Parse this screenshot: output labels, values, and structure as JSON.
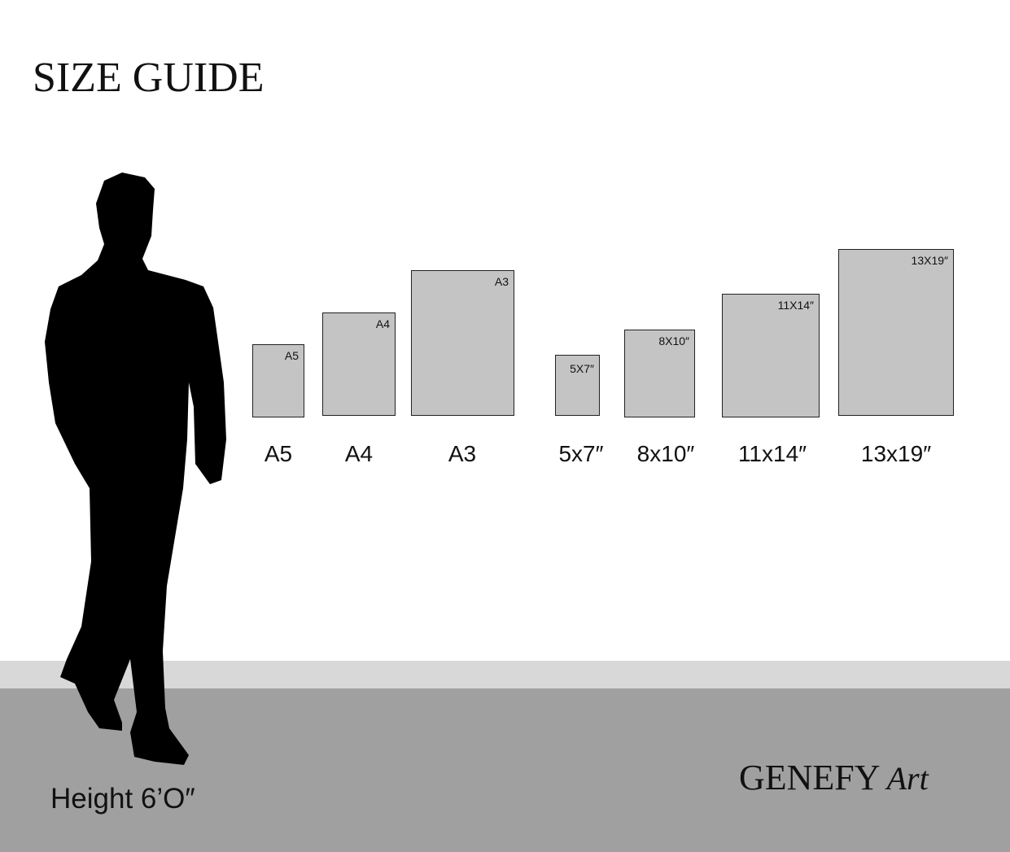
{
  "title": "SIZE GUIDE",
  "papers": [
    {
      "tag": "A5",
      "label": "A5"
    },
    {
      "tag": "A4",
      "label": "A4"
    },
    {
      "tag": "A3",
      "label": "A3"
    },
    {
      "tag": "5X7″",
      "label": "5x7″"
    },
    {
      "tag": "8X10″",
      "label": "8x10″"
    },
    {
      "tag": "11X14″",
      "label": "11x14″"
    },
    {
      "tag": "13X19″",
      "label": "13x19″"
    }
  ],
  "person_height": "Height 6’O″",
  "logo": {
    "main": "GENEFY",
    "script": "Art"
  },
  "colors": {
    "paper": "#c4c4c4",
    "floor_light": "#d8d8d8",
    "floor_dark": "#a0a0a0",
    "silhouette": "#000000"
  }
}
